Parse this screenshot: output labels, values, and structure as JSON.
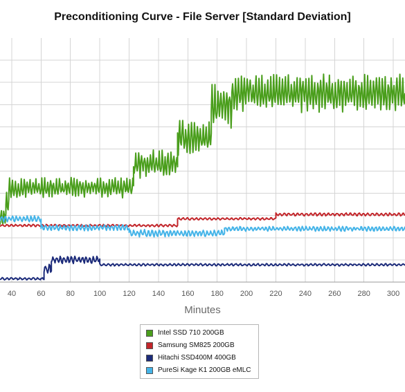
{
  "chart_data": {
    "type": "line",
    "title": "Preconditioning Curve - File Server [Standard Deviation]",
    "xlabel": "Minutes",
    "ylabel": "",
    "xlim": [
      32,
      308
    ],
    "ylim": [
      0,
      11
    ],
    "x_ticks": [
      40,
      60,
      80,
      100,
      120,
      140,
      160,
      180,
      200,
      220,
      240,
      260,
      280,
      300
    ],
    "y_ticks": [
      0,
      1,
      2,
      3,
      4,
      5,
      6,
      7,
      8,
      9,
      10
    ],
    "grid": true,
    "legend_position": "bottom-center",
    "series": [
      {
        "name": "Intel SSD 710 200GB",
        "color": "#4a9e1c",
        "segments": [
          {
            "x0": 32,
            "x1": 36,
            "mean": 3.0,
            "amp": 0.35,
            "period": 1.8
          },
          {
            "x0": 36,
            "x1": 38,
            "mean": 3.6,
            "amp": 0.35,
            "period": 1.8
          },
          {
            "x0": 38,
            "x1": 40,
            "mean": 4.15,
            "amp": 0.45,
            "period": 2.0
          },
          {
            "x0": 40,
            "x1": 123,
            "mean": 4.25,
            "amp": 0.32,
            "period": 2.0
          },
          {
            "x0": 123,
            "x1": 153,
            "mean": 5.3,
            "amp": 0.45,
            "period": 2.0
          },
          {
            "x0": 153,
            "x1": 176,
            "mean": 6.5,
            "amp": 0.55,
            "period": 2.0
          },
          {
            "x0": 176,
            "x1": 190,
            "mean": 7.9,
            "amp": 0.7,
            "period": 2.0
          },
          {
            "x0": 190,
            "x1": 308,
            "mean": 8.5,
            "amp": 0.6,
            "period": 2.0
          }
        ]
      },
      {
        "name": "Samsung SM825 200GB",
        "color": "#c2252a",
        "segments": [
          {
            "x0": 32,
            "x1": 153,
            "mean": 2.55,
            "amp": 0.04,
            "period": 3.0
          },
          {
            "x0": 153,
            "x1": 220,
            "mean": 2.85,
            "amp": 0.04,
            "period": 3.0
          },
          {
            "x0": 220,
            "x1": 308,
            "mean": 3.05,
            "amp": 0.05,
            "period": 3.0
          }
        ]
      },
      {
        "name": "Hitachi SSD400M 400GB",
        "color": "#1c2b7a",
        "segments": [
          {
            "x0": 32,
            "x1": 62,
            "mean": 0.15,
            "amp": 0.04,
            "period": 3.0
          },
          {
            "x0": 62,
            "x1": 67,
            "mean": 0.6,
            "amp": 0.15,
            "period": 2.5
          },
          {
            "x0": 67,
            "x1": 100,
            "mean": 1.0,
            "amp": 0.12,
            "period": 2.5
          },
          {
            "x0": 100,
            "x1": 308,
            "mean": 0.78,
            "amp": 0.04,
            "period": 3.0
          }
        ]
      },
      {
        "name": "PureSi Kage K1 200GB eMLC",
        "color": "#45b4e8",
        "segments": [
          {
            "x0": 32,
            "x1": 60,
            "mean": 2.85,
            "amp": 0.1,
            "period": 2.5
          },
          {
            "x0": 60,
            "x1": 120,
            "mean": 2.45,
            "amp": 0.1,
            "period": 2.5
          },
          {
            "x0": 120,
            "x1": 185,
            "mean": 2.2,
            "amp": 0.12,
            "period": 2.5
          },
          {
            "x0": 185,
            "x1": 308,
            "mean": 2.4,
            "amp": 0.08,
            "period": 2.5
          }
        ]
      }
    ]
  },
  "legend": {
    "items": [
      {
        "label": "Intel SSD 710 200GB",
        "color": "#4a9e1c"
      },
      {
        "label": "Samsung SM825 200GB",
        "color": "#c2252a"
      },
      {
        "label": "Hitachi SSD400M 400GB",
        "color": "#1c2b7a"
      },
      {
        "label": "PureSi Kage K1 200GB eMLC",
        "color": "#45b4e8"
      }
    ]
  }
}
